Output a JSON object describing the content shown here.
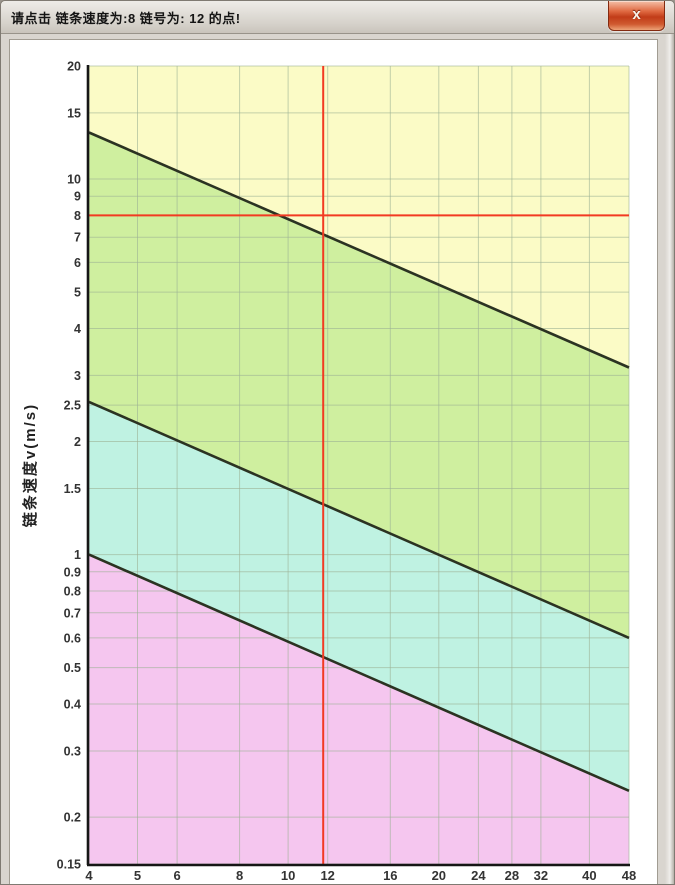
{
  "window": {
    "title": "请点击 链条速度为:8 链号为: 12 的点!",
    "close_label": "x"
  },
  "chart_data": {
    "type": "line",
    "title": "",
    "xlabel": "",
    "ylabel": "链条速度v(m/s)",
    "x_scale": "log",
    "y_scale": "log",
    "xlim": [
      4,
      48
    ],
    "ylim": [
      0.15,
      20
    ],
    "x_ticks": [
      4,
      5,
      6,
      8,
      10,
      12,
      16,
      20,
      24,
      28,
      32,
      40,
      48
    ],
    "y_ticks": [
      20,
      15,
      10,
      9,
      8,
      7,
      6,
      5,
      4,
      3,
      2.5,
      2,
      1.5,
      1,
      0.9,
      0.8,
      0.7,
      0.6,
      0.5,
      0.4,
      0.3,
      0.2,
      0.15
    ],
    "grid": true,
    "legend": false,
    "series": [
      {
        "name": "zone-boundary-upper",
        "x": [
          4,
          48
        ],
        "y": [
          13.3,
          3.15
        ]
      },
      {
        "name": "zone-boundary-middle",
        "x": [
          4,
          48
        ],
        "y": [
          2.55,
          0.6
        ]
      },
      {
        "name": "zone-boundary-lower",
        "x": [
          4,
          48
        ],
        "y": [
          1.0,
          0.235
        ]
      }
    ],
    "regions": [
      {
        "name": "region-top",
        "color": "#fbfbc6"
      },
      {
        "name": "region-upper-mid",
        "color": "#cfef9f"
      },
      {
        "name": "region-lower-mid",
        "color": "#bff2e2"
      },
      {
        "name": "region-bottom",
        "color": "#f5c6ef"
      }
    ],
    "crosshair": {
      "x": 11.75,
      "y": 8
    },
    "colors": {
      "grid": "#9db295",
      "axis": "#161616",
      "tick_text": "#333333",
      "boundary_line": "#2b3322",
      "crosshair": "#f23a22"
    }
  }
}
